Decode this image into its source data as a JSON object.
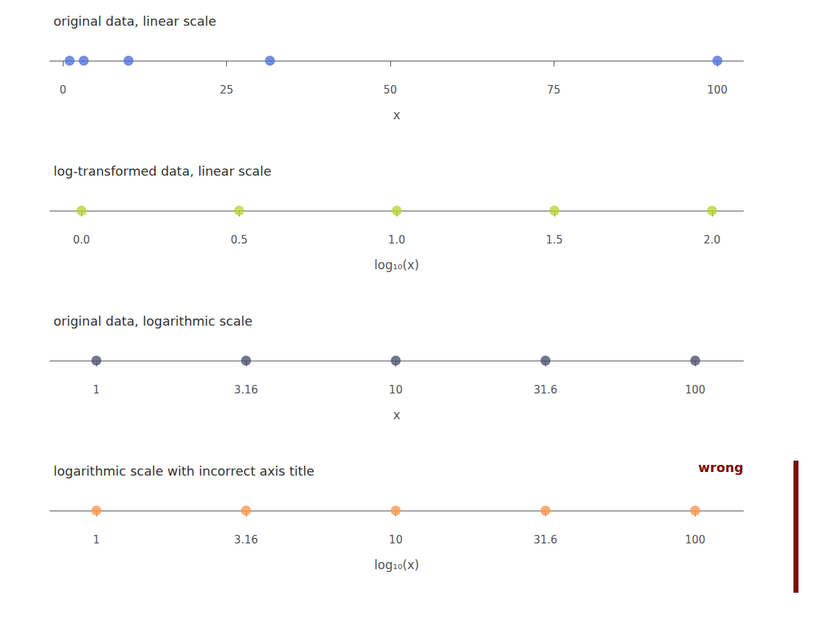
{
  "chart_data": [
    {
      "type": "scatter",
      "title": "original data, linear scale",
      "values": [
        1,
        3.162,
        10,
        31.62,
        100
      ],
      "xlabel": "x",
      "xlim": [
        -2,
        104
      ],
      "xticks": [
        0,
        25,
        50,
        75,
        100
      ],
      "grid": false,
      "tick_labels": "x"
    },
    {
      "type": "scatter",
      "title": "log-transformed data, linear scale",
      "values": [
        0.0,
        0.5,
        1.0,
        1.5,
        2.0
      ],
      "xlabel": "log₁₀(x)",
      "xlim": [
        -0.1,
        2.1
      ],
      "xticks": [
        {
          "value": 0.0,
          "label": "0.0"
        },
        0.5,
        {
          "value": 1.0,
          "label": "1.0"
        },
        1.5,
        {
          "value": 2.0,
          "label": "2.0"
        }
      ],
      "grid": false,
      "tick_labels": "x"
    },
    {
      "type": "scatter",
      "title": "original data, logarithmic scale",
      "values": [
        1,
        3.162,
        10,
        31.62,
        100
      ],
      "xlabel": "x",
      "xlim": [
        0.7,
        145
      ],
      "log": "x",
      "xticks": [
        1,
        {
          "value": 3.162,
          "label": "3.16"
        },
        10,
        {
          "value": 31.62,
          "label": "31.6"
        },
        100
      ],
      "grid": false,
      "tick_labels": "x"
    },
    {
      "type": "scatter",
      "title": "logarithmic scale with incorrect axis title",
      "values": [
        1,
        3.162,
        10,
        31.62,
        100
      ],
      "xlabel": "log₁₀(x)",
      "xlim": [
        0.7,
        145
      ],
      "log": "x",
      "xticks": [
        1,
        {
          "value": 3.162,
          "label": "3.16"
        },
        10,
        {
          "value": 31.62,
          "label": "31.6"
        },
        100
      ],
      "grid": false,
      "tick_labels": "x",
      "annotations": [
        {
          "text": "wrong",
          "color": "#7b0d0d"
        }
      ]
    }
  ]
}
